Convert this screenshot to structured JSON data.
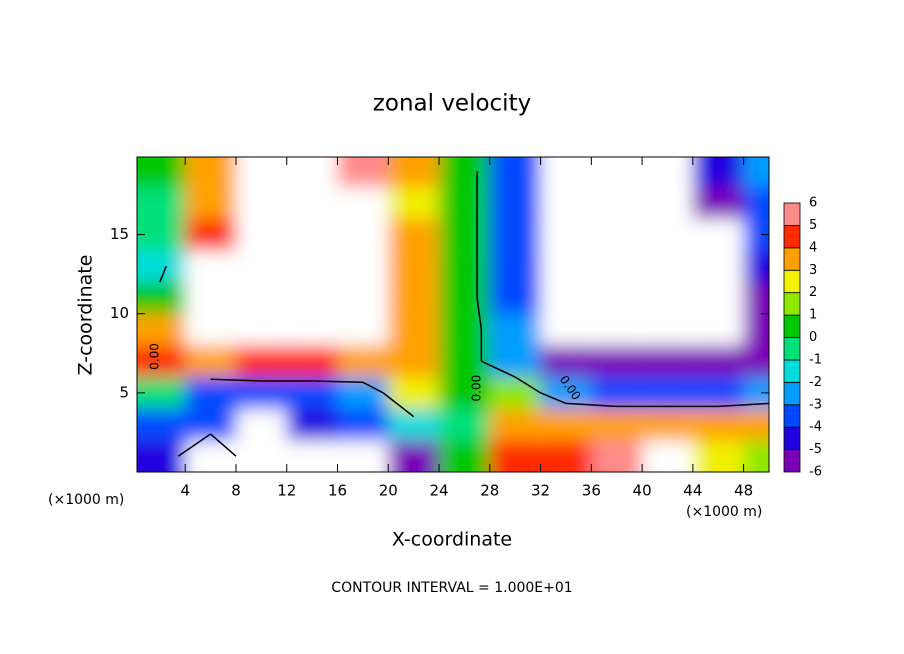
{
  "chart_data": {
    "type": "contour",
    "title": "zonal velocity",
    "x_label": "X-coordinate",
    "y_label": "Z-coordinate",
    "x_unit": "(×1000 m)",
    "note": "CONTOUR INTERVAL = 1.000E+01",
    "xlim": [
      0.2,
      50
    ],
    "ylim": [
      0,
      19.9
    ],
    "xticks": [
      4,
      8,
      12,
      16,
      20,
      24,
      28,
      32,
      36,
      40,
      44,
      48
    ],
    "yticks": [
      5,
      10,
      15
    ],
    "contour_levels": [
      0
    ],
    "contour_labels": [
      {
        "label": "0.00",
        "x": 1.6,
        "y": 7.3
      },
      {
        "label": "0.00",
        "x": 27,
        "y": 5.3
      },
      {
        "label": "0.00",
        "x": 34.3,
        "y": 5.3
      }
    ],
    "colorbar": {
      "ticks": [
        -6,
        -5,
        -4,
        -3,
        -2,
        -1,
        0,
        1,
        2,
        3,
        4,
        5,
        6
      ],
      "colors": [
        "#7a00b8",
        "#2000e0",
        "#0048ff",
        "#009cff",
        "#00dcdc",
        "#00e07a",
        "#00c800",
        "#8ee800",
        "#f0f000",
        "#ffa000",
        "#ff2a00",
        "#ff8a8a"
      ]
    },
    "field": {
      "x": [
        2,
        6,
        10,
        14,
        18,
        22,
        26,
        30,
        34,
        38,
        42,
        46,
        50
      ],
      "y": [
        1,
        3,
        5,
        7,
        9,
        11,
        13,
        15,
        17,
        19
      ],
      "z": [
        [
          -4,
          7,
          -7,
          -7,
          -7,
          -5,
          1,
          5,
          5,
          6,
          7,
          3,
          2
        ],
        [
          -3,
          -3,
          -7,
          -4,
          -3,
          -1,
          0,
          4,
          4,
          4,
          4,
          4,
          4
        ],
        [
          0,
          -3,
          -3,
          -3,
          -2,
          3,
          1,
          2,
          -2,
          -3,
          -3,
          -3,
          -2
        ],
        [
          5,
          4,
          5,
          5,
          4,
          4,
          1,
          -2,
          -5,
          -5,
          -5,
          -5,
          -6
        ],
        [
          4,
          7,
          7,
          7,
          7,
          4,
          1,
          -2,
          -7,
          -7,
          -7,
          -7,
          -6
        ],
        [
          1,
          7,
          7,
          7,
          7,
          4,
          1,
          -3,
          -7,
          -7,
          -7,
          -7,
          -5
        ],
        [
          -1,
          7,
          7,
          7,
          7,
          4,
          1,
          -3,
          -7,
          -7,
          -7,
          -7,
          -4
        ],
        [
          0,
          5,
          7,
          7,
          7,
          4,
          1,
          -3,
          -7,
          -7,
          -7,
          -7,
          -3
        ],
        [
          0,
          4,
          7,
          7,
          7,
          3,
          1,
          -3,
          -7,
          -7,
          -7,
          -5,
          -3
        ],
        [
          1,
          4,
          7,
          7,
          6,
          4,
          1,
          -3,
          -7,
          -7,
          -7,
          -4,
          -2
        ]
      ]
    }
  }
}
